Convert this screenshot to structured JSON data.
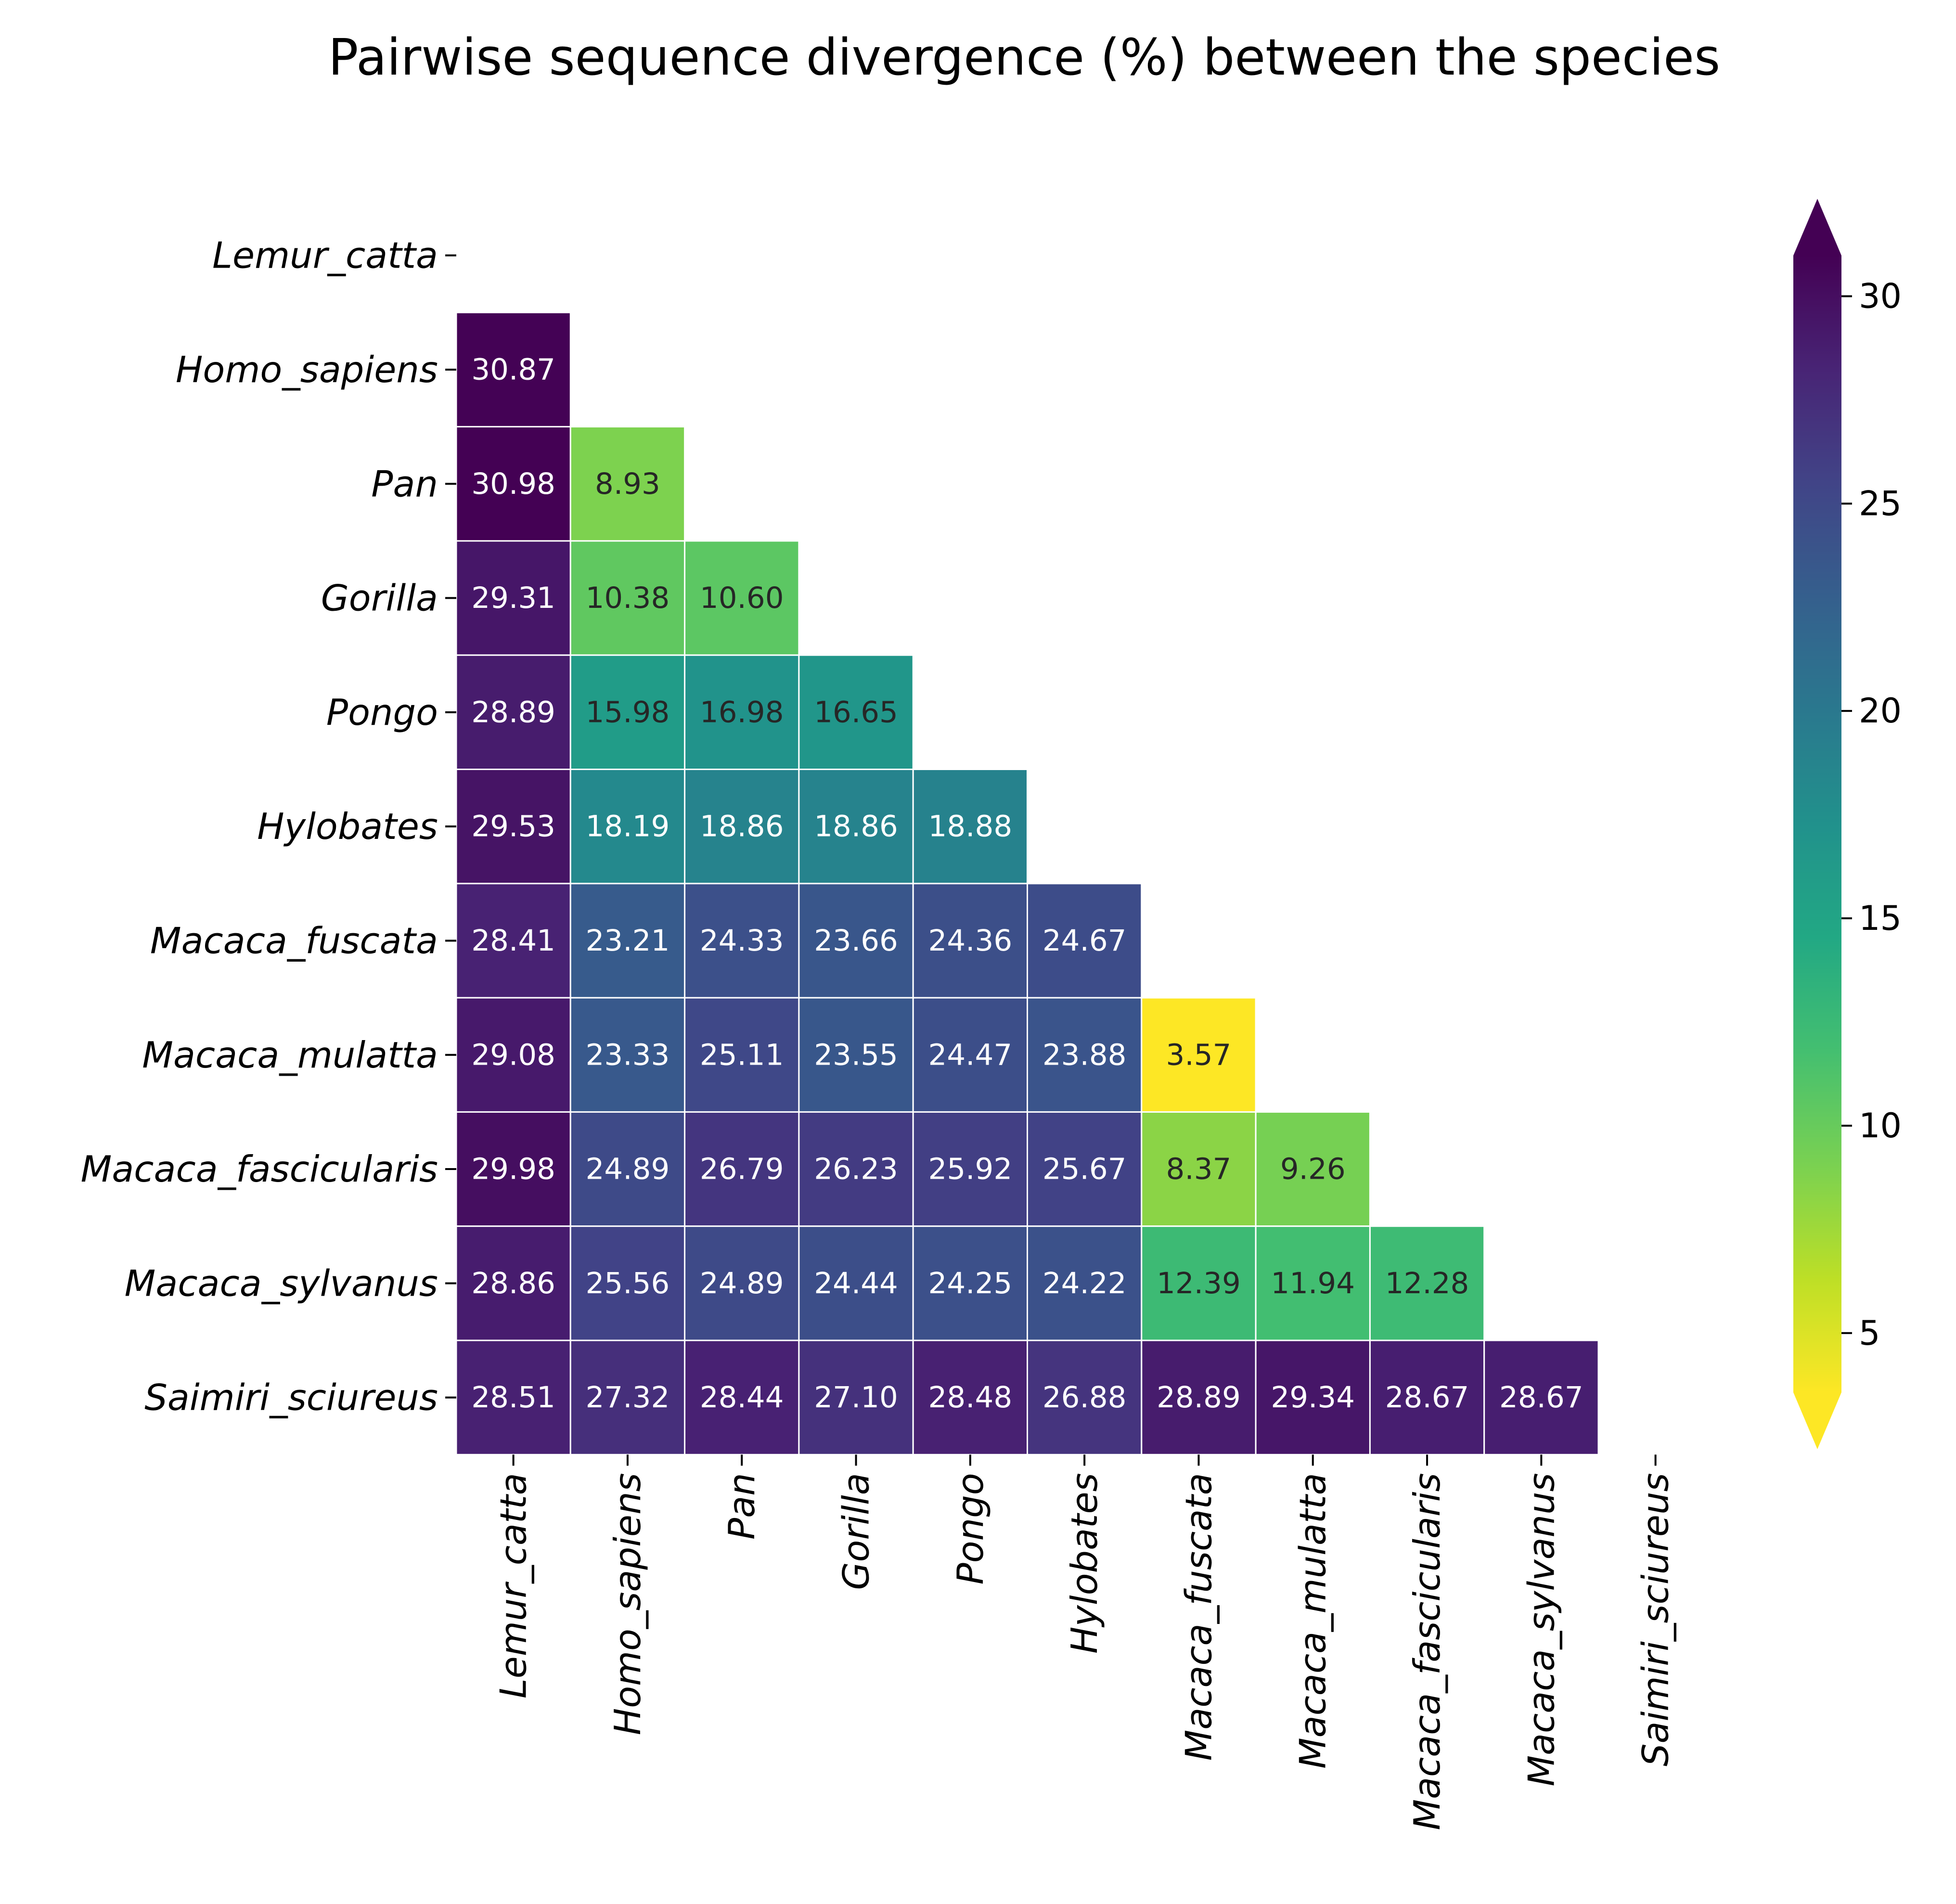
{
  "chart_data": {
    "type": "heatmap",
    "title": "Pairwise sequence divergence (%) between the species",
    "xlabel": "",
    "ylabel": "",
    "species": [
      "Lemur_catta",
      "Homo_sapiens",
      "Pan",
      "Gorilla",
      "Pongo",
      "Hylobates",
      "Macaca_fuscata",
      "Macaca_mulatta",
      "Macaca_fascicularis",
      "Macaca_sylvanus",
      "Saimiri_sciureus"
    ],
    "mask": "upper-triangle-including-diagonal",
    "values": [
      [
        null,
        null,
        null,
        null,
        null,
        null,
        null,
        null,
        null,
        null,
        null
      ],
      [
        30.87,
        null,
        null,
        null,
        null,
        null,
        null,
        null,
        null,
        null,
        null
      ],
      [
        30.98,
        8.93,
        null,
        null,
        null,
        null,
        null,
        null,
        null,
        null,
        null
      ],
      [
        29.31,
        10.38,
        10.6,
        null,
        null,
        null,
        null,
        null,
        null,
        null,
        null
      ],
      [
        28.89,
        15.98,
        16.98,
        16.65,
        null,
        null,
        null,
        null,
        null,
        null,
        null
      ],
      [
        29.53,
        18.19,
        18.86,
        18.86,
        18.88,
        null,
        null,
        null,
        null,
        null,
        null
      ],
      [
        28.41,
        23.21,
        24.33,
        23.66,
        24.36,
        24.67,
        null,
        null,
        null,
        null,
        null
      ],
      [
        29.08,
        23.33,
        25.11,
        23.55,
        24.47,
        23.88,
        3.57,
        null,
        null,
        null,
        null
      ],
      [
        29.98,
        24.89,
        26.79,
        26.23,
        25.92,
        25.67,
        8.37,
        9.26,
        null,
        null,
        null
      ],
      [
        28.86,
        25.56,
        24.89,
        24.44,
        24.25,
        24.22,
        12.39,
        11.94,
        12.28,
        null,
        null
      ],
      [
        28.51,
        27.32,
        28.44,
        27.1,
        28.48,
        26.88,
        28.89,
        29.34,
        28.67,
        28.67,
        null
      ]
    ],
    "value_format": "2 decimals",
    "colormap": "viridis_r",
    "vmin": 3.57,
    "vmax": 30.98,
    "colorbar": {
      "ticks": [
        5,
        10,
        15,
        20,
        25,
        30
      ],
      "extend": "both",
      "placement": "right"
    },
    "grid": false,
    "cell_border_color": "#ffffff",
    "annotation_dark_text_color": "#262626",
    "annotation_light_text_color": "#ffffff"
  }
}
